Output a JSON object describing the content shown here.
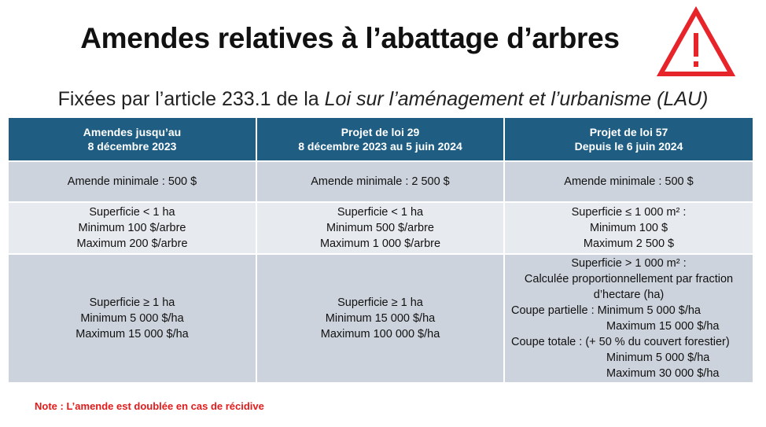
{
  "title": "Amendes relatives à l’abattage d’arbres",
  "subtitle_prefix": "Fixées par l’article 233.1 de la ",
  "subtitle_italic": "Loi sur l’aménagement et l’urbanisme (LAU)",
  "warning_color": "#e8242b",
  "header_color": "#1f5e82",
  "columns": [
    {
      "line1": "Amendes jusqu’au",
      "line2": "8 décembre 2023"
    },
    {
      "line1": "Projet de loi 29",
      "line2": "8 décembre 2023 au 5 juin 2024"
    },
    {
      "line1": "Projet de loi 57",
      "line2": "Depuis le 6 juin 2024"
    }
  ],
  "row1": [
    "Amende minimale : 500 $",
    "Amende minimale : 2 500 $",
    "Amende minimale : 500 $"
  ],
  "row2": [
    [
      "Superficie < 1 ha",
      "Minimum 100 $/arbre",
      "Maximum 200 $/arbre"
    ],
    [
      "Superficie < 1 ha",
      "Minimum 500 $/arbre",
      "Maximum 1 000 $/arbre"
    ],
    [
      "Superficie ≤ 1 000 m² :",
      "Minimum 100 $",
      "Maximum 2 500 $"
    ]
  ],
  "row3": {
    "col1": [
      "Superficie ≥ 1 ha",
      "Minimum 5 000 $/ha",
      "Maximum 15 000 $/ha"
    ],
    "col2": [
      "Superficie ≥ 1 ha",
      "Minimum 15 000 $/ha",
      "Maximum 100 000 $/ha"
    ],
    "col3": {
      "heading": "Superficie > 1 000 m² :",
      "desc1": "Calculée proportionnellement par fraction",
      "desc2": "d’hectare (ha)",
      "partial_label": "Coupe partielle :  Minimum 5 000 $/ha",
      "partial_max": "Maximum 15 000 $/ha",
      "total_label": "Coupe totale : (+ 50 % du couvert forestier)",
      "total_min": "Minimum 5 000 $/ha",
      "total_max": "Maximum 30 000 $/ha"
    }
  },
  "note": "Note : L’amende est doublée en cas de récidive"
}
